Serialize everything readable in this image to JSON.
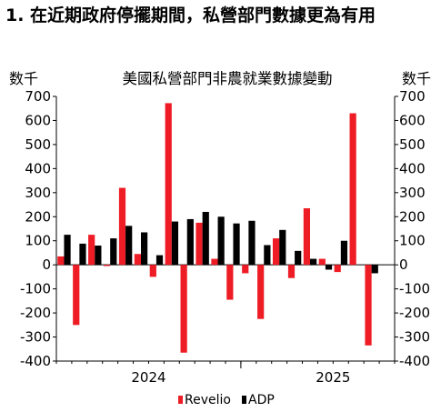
{
  "heading": "1. 在近期政府停擺期間，私營部門數據更為有用",
  "chart_data": {
    "type": "bar",
    "title": "美國私營部門非農就業數據變動",
    "ylabel_left": "数千",
    "ylabel_right": "数千",
    "ylim": [
      -400,
      700
    ],
    "yticks": [
      -400,
      -300,
      -200,
      -100,
      0,
      100,
      200,
      300,
      400,
      500,
      600,
      700
    ],
    "year_labels": [
      {
        "label": "2024",
        "month_index": 5.5
      },
      {
        "label": "2025",
        "month_index": 17.5
      }
    ],
    "months": 22,
    "legend_position": "bottom-center",
    "series": [
      {
        "name": "Revelio",
        "color": "#ee1c25",
        "values": [
          35,
          -250,
          125,
          -5,
          320,
          45,
          -50,
          672,
          -365,
          175,
          25,
          -145,
          -35,
          -225,
          110,
          -55,
          235,
          25,
          -30,
          630,
          -335,
          null
        ]
      },
      {
        "name": "ADP",
        "color": "#000000",
        "values": [
          125,
          88,
          80,
          110,
          162,
          135,
          40,
          180,
          190,
          220,
          200,
          172,
          183,
          82,
          145,
          58,
          25,
          -20,
          100,
          null,
          -35,
          null
        ]
      }
    ]
  }
}
